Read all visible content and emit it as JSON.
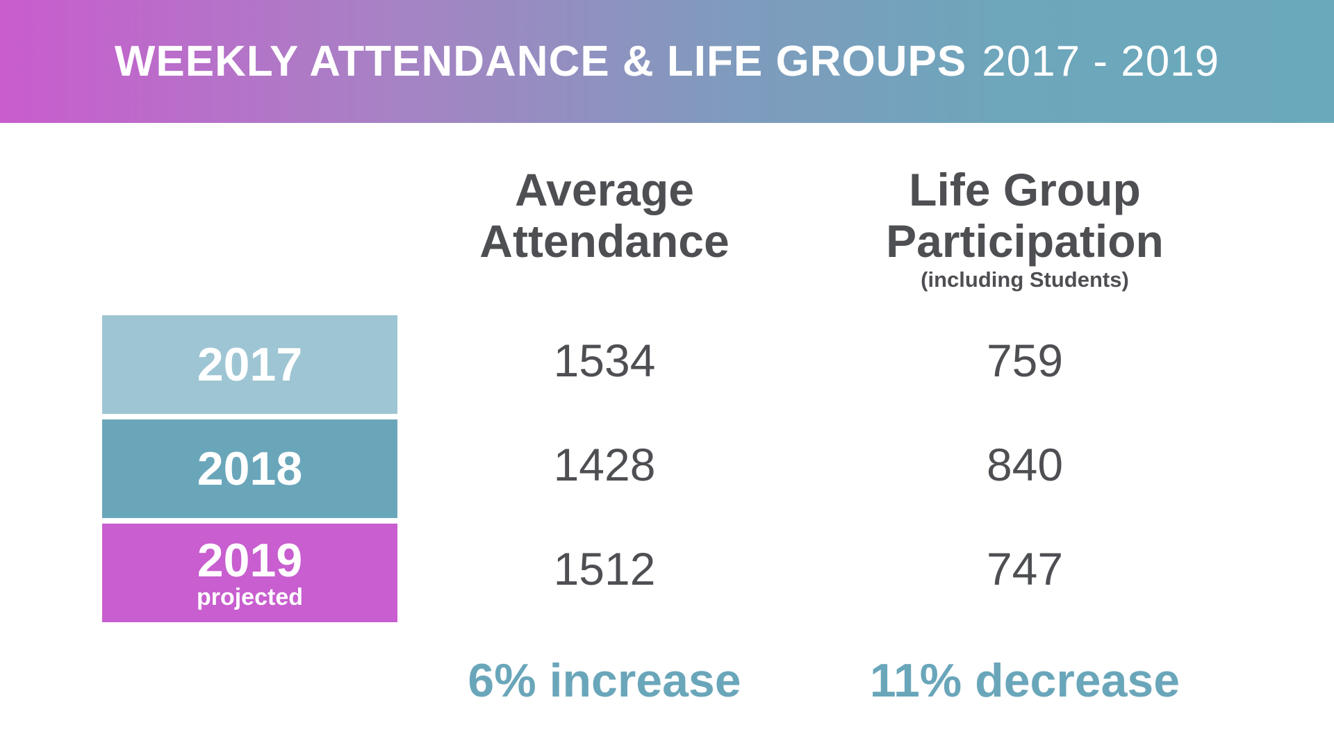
{
  "header": {
    "title_bold": "WEEKLY ATTENDANCE & LIFE GROUPS",
    "title_years": "2017 - 2019"
  },
  "columns": [
    {
      "label_line1": "Average",
      "label_line2": "Attendance",
      "sublabel": ""
    },
    {
      "label_line1": "Life Group",
      "label_line2": "Participation",
      "sublabel": "(including Students)"
    }
  ],
  "rows": [
    {
      "year": "2017",
      "note": "",
      "color": "#9ec5d3"
    },
    {
      "year": "2018",
      "note": "",
      "color": "#6aa6ba"
    },
    {
      "year": "2019",
      "note": "projected",
      "color": "#c85ecf"
    }
  ],
  "changes": {
    "attendance": "6% increase",
    "life_groups": "11% decrease"
  },
  "colors": {
    "accent_teal": "#6aa6ba",
    "text_dark": "#4e4f53",
    "purple": "#c85ecf"
  },
  "chart_data": {
    "type": "table",
    "title": "WEEKLY ATTENDANCE & LIFE GROUPS 2017 - 2019",
    "categories": [
      "2017",
      "2018",
      "2019"
    ],
    "series": [
      {
        "name": "Average Attendance",
        "values": [
          1534,
          1428,
          1512
        ]
      },
      {
        "name": "Life Group Participation (including Students)",
        "values": [
          759,
          840,
          747
        ]
      }
    ]
  }
}
